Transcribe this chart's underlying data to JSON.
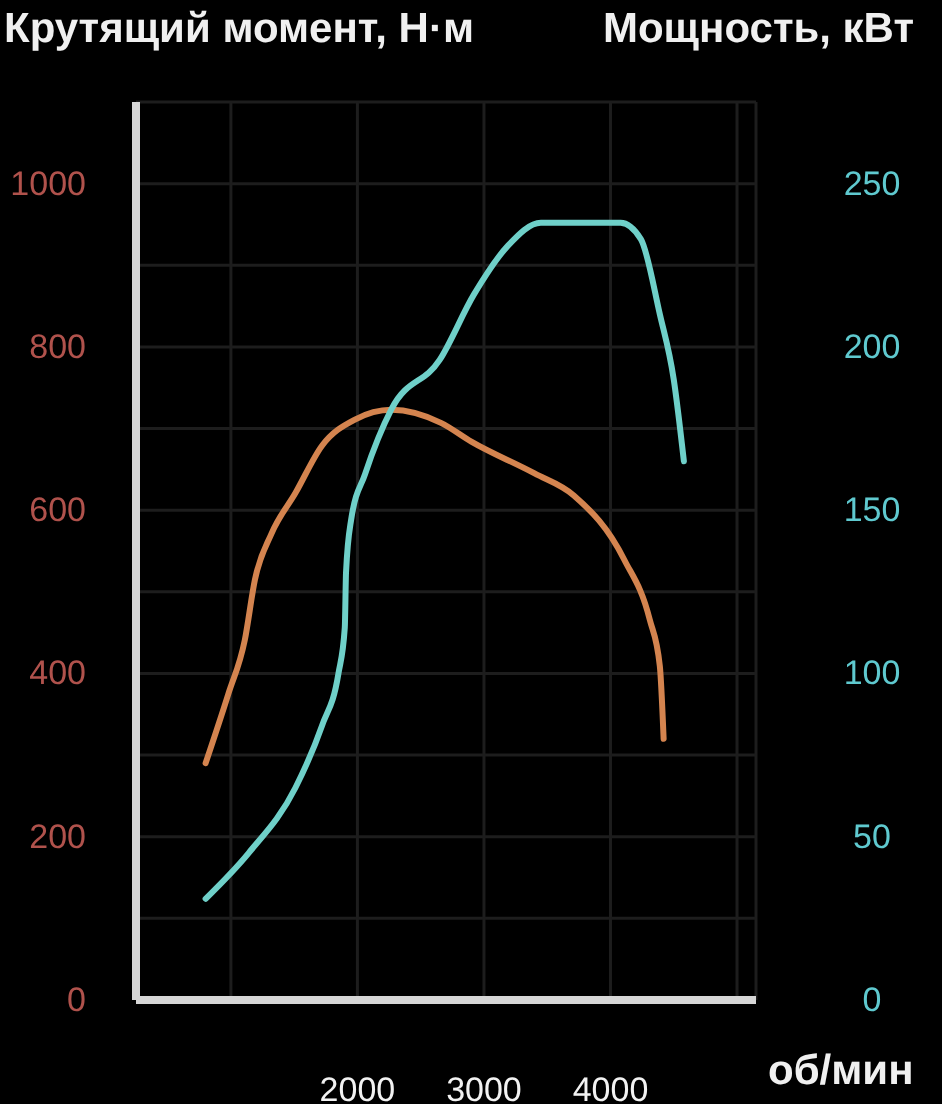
{
  "chart_data": {
    "type": "line",
    "xlabel": "об/мин",
    "ylabel": "Крутящий момент, Н·м",
    "y2label": "Мощность, кВт",
    "xlim": [
      250,
      5150
    ],
    "xticks": [
      {
        "value": 1000,
        "label": null
      },
      2000,
      3000,
      4000,
      {
        "value": 5000,
        "label": null
      }
    ],
    "ylim": [
      0,
      1100
    ],
    "yticks": [
      0,
      {
        "value": 100,
        "label": null
      },
      200,
      {
        "value": 300,
        "label": null
      },
      400,
      {
        "value": 500,
        "label": null
      },
      600,
      {
        "value": 700,
        "label": null
      },
      800,
      {
        "value": 900,
        "label": null
      },
      1000,
      {
        "value": 1100,
        "label": null
      }
    ],
    "y2lim": [
      0,
      275
    ],
    "y2ticks": [
      0,
      50,
      100,
      150,
      200,
      250
    ],
    "grid": true,
    "marker": "none",
    "line_style": "solid",
    "series": [
      {
        "color": "#d4844f",
        "x": [
          800,
          980,
          1110,
          1190,
          1320,
          1510,
          1720,
          1980,
          2270,
          2660,
          2900,
          3400,
          3710,
          4110,
          4310,
          4390,
          4420
        ],
        "values": [
          290,
          375,
          441,
          515,
          571,
          621,
          679,
          711,
          723,
          707,
          684,
          645,
          618,
          539,
          466,
          409,
          320
        ]
      },
      {
        "color": "#6fd0c9",
        "axis": "y2",
        "x": [
          800,
          1140,
          1510,
          1720,
          1850,
          1900,
          1910,
          1950,
          2060,
          2270,
          2650,
          2920,
          3190,
          3450,
          4080,
          4240,
          4390,
          4500,
          4580
        ],
        "values": [
          31,
          45,
          65,
          84,
          100,
          114,
          131,
          147,
          161,
          181,
          196,
          216,
          231,
          238,
          238,
          233,
          210,
          190,
          165
        ]
      }
    ]
  }
}
